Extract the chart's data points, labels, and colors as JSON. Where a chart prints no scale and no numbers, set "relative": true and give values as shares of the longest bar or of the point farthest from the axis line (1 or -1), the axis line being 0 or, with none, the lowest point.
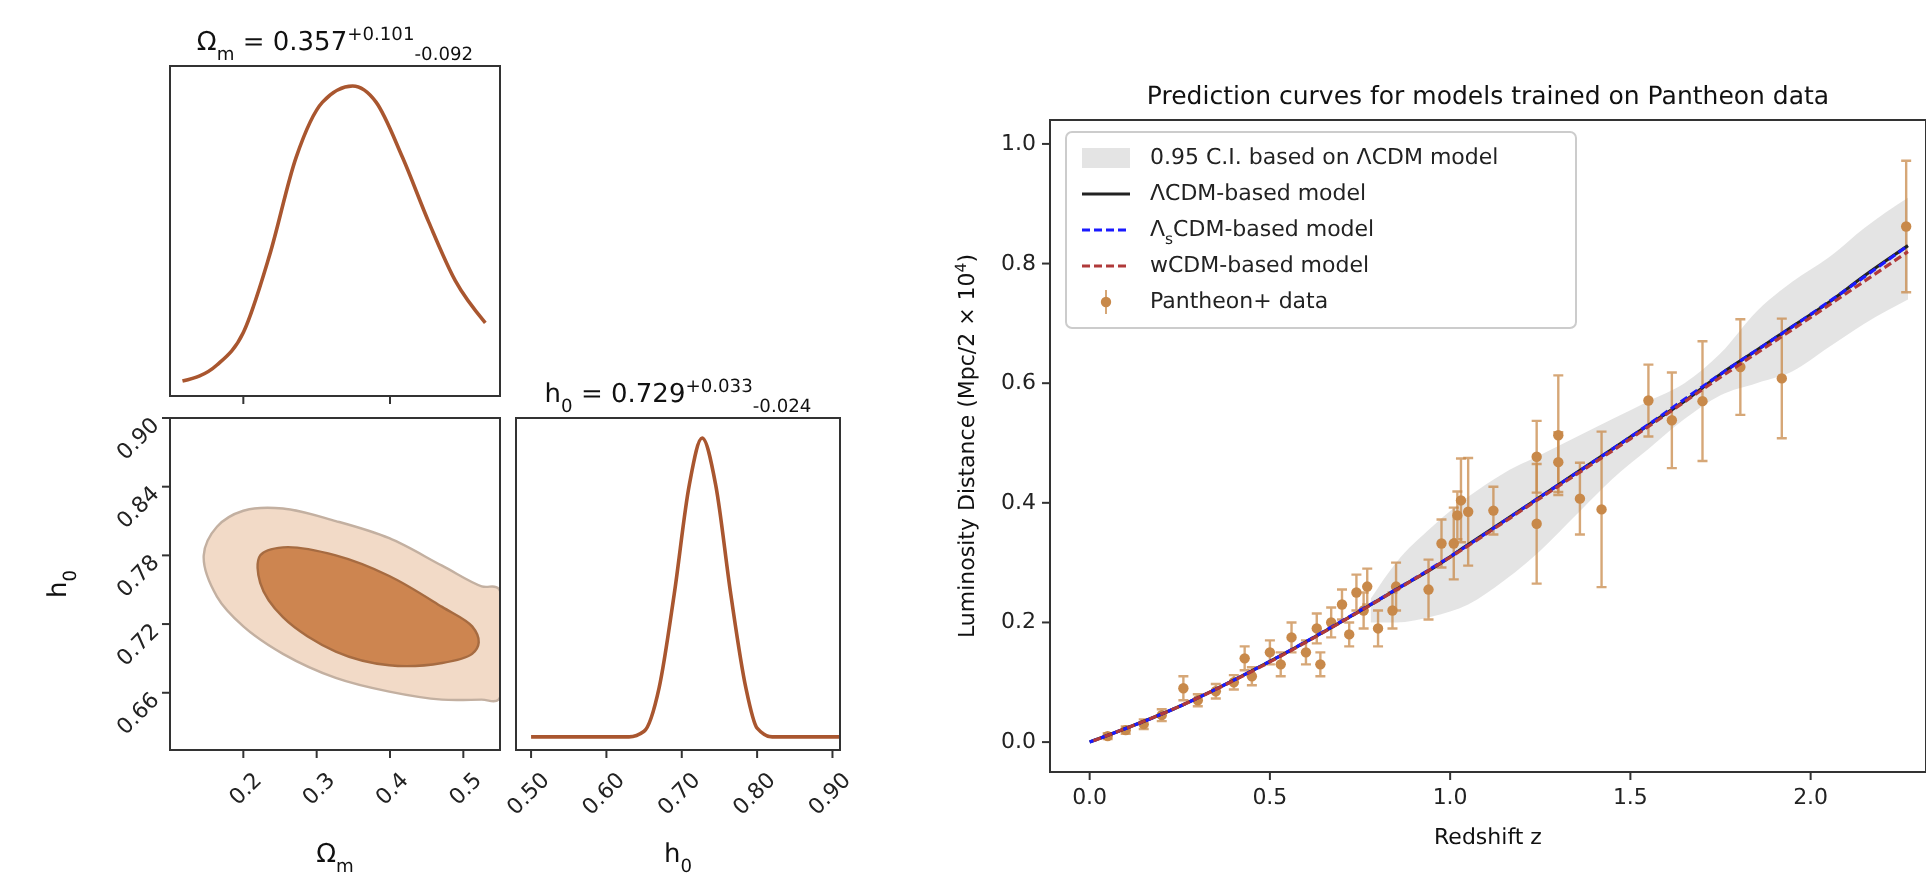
{
  "chart_data": [
    {
      "type": "line",
      "title": "Ω$_{m}$ = 0.357$^{+0.101}$$_{-0.092}$",
      "relative": true,
      "xlim": [
        0.1,
        0.55
      ],
      "xticks": [
        {
          "value": 0.2,
          "label": null
        },
        {
          "value": 0.4,
          "label": null
        }
      ],
      "tick_labels": false,
      "series": [
        {
          "color": "#a9562f",
          "x": [
            0.117,
            0.164,
            0.2,
            0.236,
            0.272,
            0.308,
            0.349,
            0.381,
            0.417,
            0.453,
            0.489,
            0.53
          ],
          "values": [
            0.048,
            0.1,
            0.205,
            0.456,
            0.77,
            0.948,
            1.0,
            0.948,
            0.77,
            0.56,
            0.372,
            0.236
          ]
        }
      ]
    },
    {
      "type": "area",
      "xlabel": "Ω$_{m}$",
      "ylabel": "h$_{0}$",
      "xlim": [
        0.1,
        0.55
      ],
      "ylim": [
        0.61,
        0.9
      ],
      "xticks": [
        0.2,
        0.3,
        0.4,
        0.5
      ],
      "yticks": [
        0.66,
        0.72,
        0.78,
        0.84,
        {
          "value": 0.9,
          "label": "0.90"
        }
      ],
      "series": [
        {
          "color": "#f2dac7",
          "x": [
            0.146,
            0.164,
            0.2,
            0.254,
            0.326,
            0.399,
            0.471,
            0.525,
            0.548,
            0.548,
            0.525,
            0.471,
            0.399,
            0.326,
            0.254,
            0.2,
            0.164
          ],
          "values": [
            0.78,
            0.805,
            0.819,
            0.821,
            0.81,
            0.795,
            0.771,
            0.753,
            0.751,
            0.654,
            0.654,
            0.654,
            0.661,
            0.673,
            0.694,
            0.718,
            0.744
          ]
        },
        {
          "color": "#cd8550",
          "x": [
            0.223,
            0.254,
            0.326,
            0.399,
            0.471,
            0.512,
            0.521,
            0.512,
            0.471,
            0.399,
            0.326,
            0.254,
            0.223
          ],
          "values": [
            0.78,
            0.787,
            0.78,
            0.762,
            0.735,
            0.718,
            0.704,
            0.694,
            0.686,
            0.684,
            0.696,
            0.726,
            0.756
          ]
        }
      ]
    },
    {
      "type": "line",
      "title": "h$_{0}$ = 0.729$^{+0.033}$$_{-0.024}$",
      "xlabel": "h$_{0}$",
      "relative": true,
      "xlim": [
        0.48,
        0.91
      ],
      "xticks": [
        {
          "value": 0.5,
          "label": "0.50"
        },
        {
          "value": 0.6,
          "label": "0.60"
        },
        {
          "value": 0.7,
          "label": "0.70"
        },
        {
          "value": 0.8,
          "label": "0.80"
        },
        {
          "value": 0.9,
          "label": "0.90"
        }
      ],
      "tick_labels": "x",
      "series": [
        {
          "color": "#a9562f",
          "x": [
            0.5,
            0.63,
            0.65,
            0.67,
            0.69,
            0.71,
            0.727,
            0.745,
            0.765,
            0.785,
            0.8,
            0.82,
            0.91
          ],
          "values": [
            0.042,
            0.042,
            0.06,
            0.2,
            0.5,
            0.85,
            1.0,
            0.85,
            0.5,
            0.2,
            0.07,
            0.042,
            0.042
          ]
        }
      ]
    },
    {
      "type": "line",
      "title": "Prediction curves for models trained on Pantheon data",
      "xlabel": "Redshift z",
      "ylabel": "Luminosity Distance (Mpc/2 × 10$^{4}$)",
      "xlim": [
        -0.11,
        2.32
      ],
      "ylim": [
        -0.05,
        1.04
      ],
      "xticks": [
        {
          "value": 0,
          "label": "0.0"
        },
        0.5,
        {
          "value": 1,
          "label": "1.0"
        },
        1.5,
        {
          "value": 2,
          "label": "2.0"
        }
      ],
      "yticks": [
        {
          "value": 0,
          "label": "0.0"
        },
        0.2,
        0.4,
        0.6,
        0.8,
        {
          "value": 1,
          "label": "1.0"
        }
      ],
      "legend": "top left",
      "annotations": [
        "0.95 C.I. based on ΛCDM model"
      ],
      "series": [
        {
          "name": "ΛCDM-based model",
          "color": "#222222",
          "line_style": "solid",
          "x": [
            0,
            0.25,
            0.5,
            0.78,
            0.85,
            0.95,
            1.05,
            1.15,
            1.25,
            1.35,
            1.45,
            1.55,
            1.65,
            1.75,
            1.85,
            1.95,
            2.05,
            2.15,
            2.27
          ],
          "values": [
            0,
            0.06,
            0.135,
            0.23,
            0.255,
            0.29,
            0.33,
            0.37,
            0.41,
            0.45,
            0.49,
            0.53,
            0.57,
            0.615,
            0.655,
            0.695,
            0.735,
            0.78,
            0.83
          ],
          "lower": [
            null,
            null,
            null,
            0.2,
            0.2,
            0.21,
            0.23,
            0.27,
            0.32,
            0.38,
            0.44,
            0.49,
            0.54,
            0.58,
            0.6,
            0.62,
            0.66,
            0.7,
            0.74
          ],
          "upper": [
            null,
            null,
            null,
            0.24,
            0.3,
            0.36,
            0.41,
            0.45,
            0.48,
            0.51,
            0.54,
            0.57,
            0.6,
            0.65,
            0.72,
            0.77,
            0.81,
            0.86,
            0.91
          ]
        },
        {
          "name": "Λ$_{s}$CDM-based model",
          "color": "#1a1aff",
          "line_style": "dashed",
          "x": [
            0,
            0.25,
            0.5,
            0.75,
            1,
            1.25,
            1.5,
            1.75,
            2,
            2.27
          ],
          "values": [
            0,
            0.06,
            0.135,
            0.22,
            0.31,
            0.41,
            0.51,
            0.615,
            0.715,
            0.83
          ]
        },
        {
          "name": "wCDM-based model",
          "color": "#b03a3a",
          "line_style": "dashed",
          "x": [
            0,
            0.25,
            0.5,
            0.75,
            1,
            1.25,
            1.5,
            1.75,
            2,
            2.27
          ],
          "values": [
            0,
            0.06,
            0.134,
            0.219,
            0.309,
            0.408,
            0.507,
            0.61,
            0.71,
            0.82
          ]
        },
        {
          "type": "scatter",
          "name": "Pantheon+ data",
          "color": "#c8894a",
          "marker": "circle",
          "x": [
            0.05,
            0.1,
            0.15,
            0.2,
            0.26,
            0.3,
            0.35,
            0.4,
            0.43,
            0.45,
            0.5,
            0.53,
            0.56,
            0.6,
            0.63,
            0.64,
            0.67,
            0.7,
            0.72,
            0.74,
            0.76,
            0.77,
            0.8,
            0.84,
            0.85,
            0.94,
            0.976,
            1.01,
            1.02,
            1.03,
            1.05,
            1.12,
            1.24,
            1.24,
            1.3,
            1.3,
            1.36,
            1.42,
            1.55,
            1.615,
            1.7,
            1.805,
            1.92,
            2.265
          ],
          "values": [
            0.01,
            0.02,
            0.03,
            0.045,
            0.09,
            0.07,
            0.085,
            0.1,
            0.14,
            0.11,
            0.15,
            0.13,
            0.175,
            0.15,
            0.19,
            0.13,
            0.2,
            0.23,
            0.18,
            0.25,
            0.22,
            0.26,
            0.19,
            0.22,
            0.26,
            0.255,
            0.332,
            0.332,
            0.379,
            0.404,
            0.385,
            0.387,
            0.477,
            0.365,
            0.513,
            0.468,
            0.407,
            0.389,
            0.571,
            0.538,
            0.57,
            0.627,
            0.608,
            0.862
          ],
          "errors": [
            0.005,
            0.006,
            0.008,
            0.01,
            0.02,
            0.01,
            0.012,
            0.012,
            0.02,
            0.015,
            0.02,
            0.02,
            0.025,
            0.02,
            0.025,
            0.02,
            0.025,
            0.025,
            0.02,
            0.03,
            0.03,
            0.03,
            0.03,
            0.03,
            0.04,
            0.05,
            0.04,
            0.06,
            0.04,
            0.07,
            0.09,
            0.04,
            0.06,
            0.1,
            0.1,
            0.05,
            0.06,
            0.13,
            0.06,
            0.08,
            0.1,
            0.08,
            0.1,
            0.11
          ]
        }
      ]
    }
  ]
}
